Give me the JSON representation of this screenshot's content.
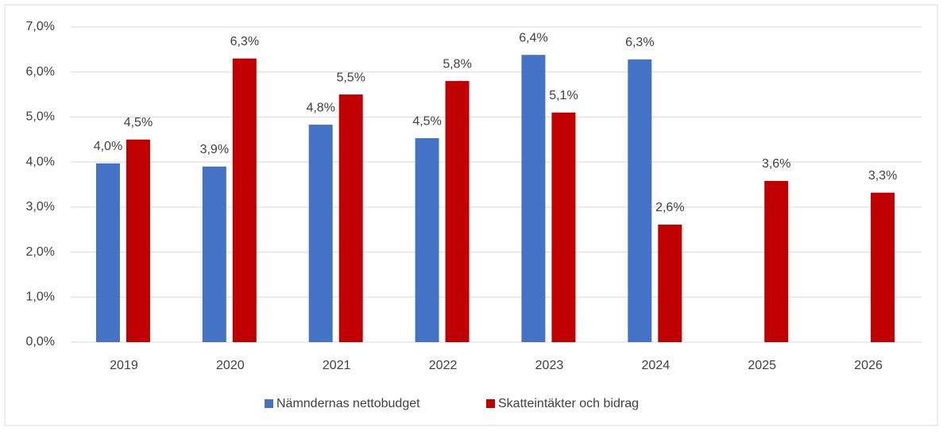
{
  "chart_data": {
    "type": "bar",
    "categories": [
      "2019",
      "2020",
      "2021",
      "2022",
      "2023",
      "2024",
      "2025",
      "2026"
    ],
    "series": [
      {
        "name": "Nämndernas nettobudget",
        "color": "#4472c4",
        "values": [
          3.97,
          3.9,
          4.83,
          4.53,
          6.38,
          6.28,
          null,
          null
        ],
        "value_labels": [
          "4,0%",
          "3,9%",
          "4,8%",
          "4,5%",
          "6,4%",
          "6,3%",
          null,
          null
        ]
      },
      {
        "name": "Skatteintäkter och bidrag",
        "color": "#c00000",
        "values": [
          4.5,
          6.3,
          5.5,
          5.8,
          5.1,
          2.61,
          3.58,
          3.32
        ],
        "value_labels": [
          "4,5%",
          "6,3%",
          "5,5%",
          "5,8%",
          "5,1%",
          "2,6%",
          "3,6%",
          "3,3%"
        ]
      }
    ],
    "ylim": [
      0,
      7
    ],
    "yticks": [
      {
        "value": 0,
        "label": "0,0%"
      },
      {
        "value": 1,
        "label": "1,0%"
      },
      {
        "value": 2,
        "label": "2,0%"
      },
      {
        "value": 3,
        "label": "3,0%"
      },
      {
        "value": 4,
        "label": "4,0%"
      },
      {
        "value": 5,
        "label": "5,0%"
      },
      {
        "value": 6,
        "label": "6,0%"
      },
      {
        "value": 7,
        "label": "7,0%"
      }
    ],
    "grid": true,
    "legend": "bottom"
  }
}
